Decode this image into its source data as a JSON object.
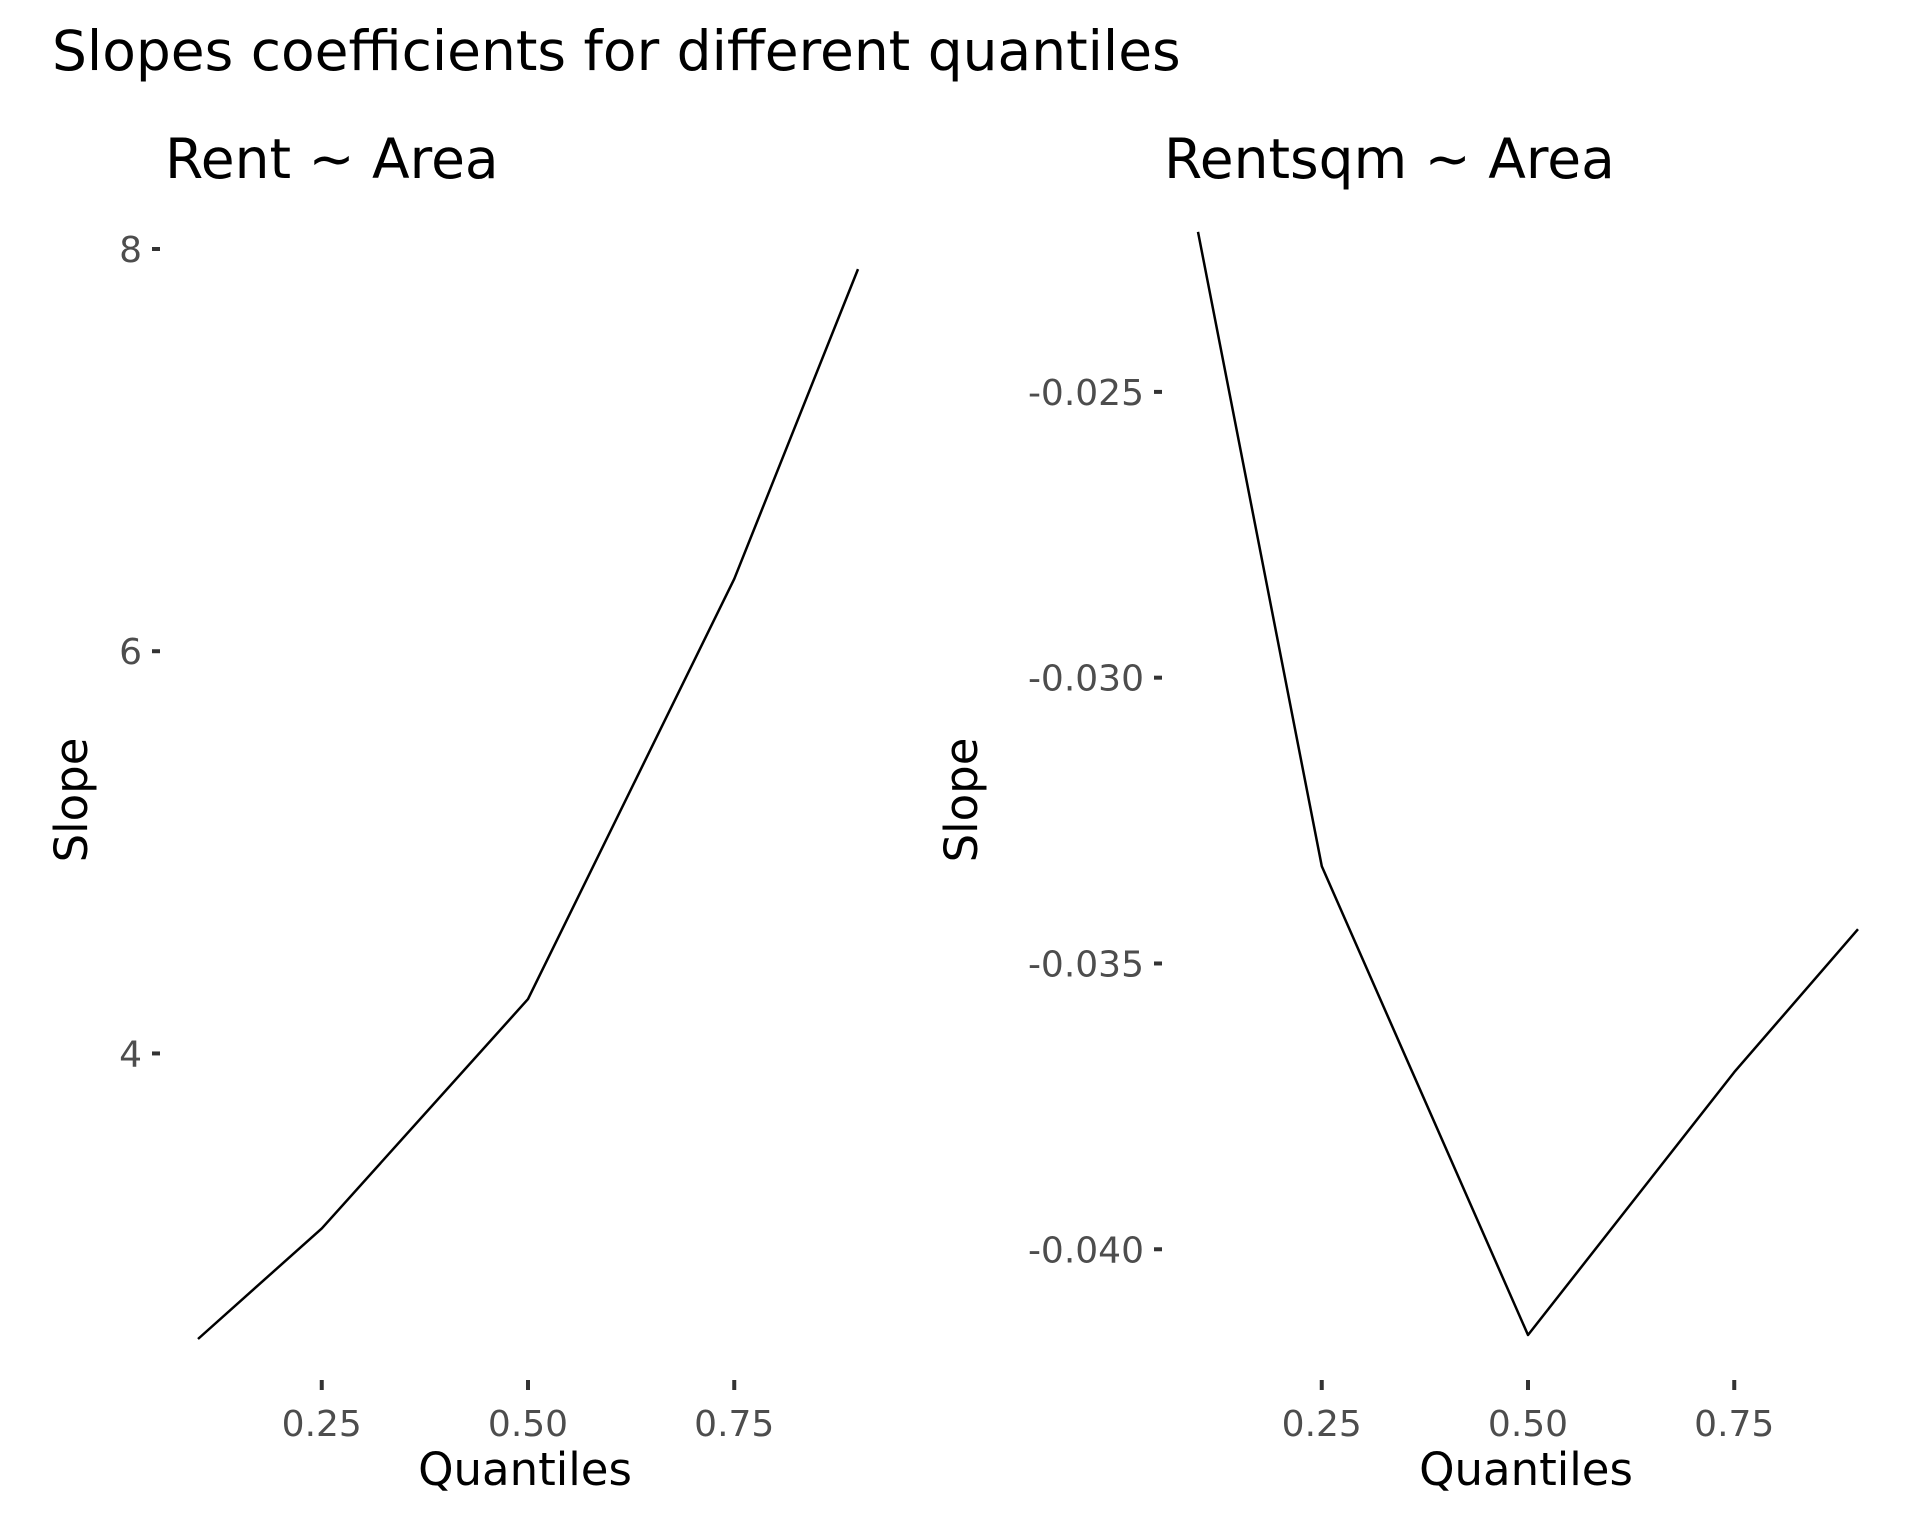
{
  "figure_title": "Slopes coefficients for different quantiles",
  "chart_data": [
    {
      "type": "line",
      "title": "Rent ~ Area",
      "xlabel": "Quantiles",
      "ylabel": "Slope",
      "xlim": [
        0.1,
        0.9
      ],
      "ylim": [
        2.6,
        8.0
      ],
      "xticks": [
        0.25,
        0.5,
        0.75
      ],
      "xtick_labels": [
        "0.25",
        "0.50",
        "0.75"
      ],
      "yticks": [
        4,
        6,
        8
      ],
      "ytick_labels": [
        "4",
        "6",
        "8"
      ],
      "grid": false,
      "x": [
        0.1,
        0.25,
        0.5,
        0.75,
        0.9
      ],
      "series": [
        {
          "values": [
            2.58,
            3.13,
            4.27,
            6.36,
            7.9
          ]
        }
      ]
    },
    {
      "type": "line",
      "title": "Rentsqm ~ Area",
      "xlabel": "Quantiles",
      "ylabel": "Slope",
      "xlim": [
        0.1,
        0.9
      ],
      "ylim": [
        -0.0415,
        -0.0225
      ],
      "xticks": [
        0.25,
        0.5,
        0.75
      ],
      "xtick_labels": [
        "0.25",
        "0.50",
        "0.75"
      ],
      "yticks": [
        -0.04,
        -0.035,
        -0.03,
        -0.025
      ],
      "ytick_labels": [
        "-0.040",
        "-0.035",
        "-0.030",
        "-0.025"
      ],
      "grid": false,
      "x": [
        0.1,
        0.25,
        0.5,
        0.75,
        0.9
      ],
      "series": [
        {
          "values": [
            -0.0222,
            -0.0333,
            -0.0415,
            -0.0369,
            -0.0344
          ]
        }
      ]
    }
  ]
}
